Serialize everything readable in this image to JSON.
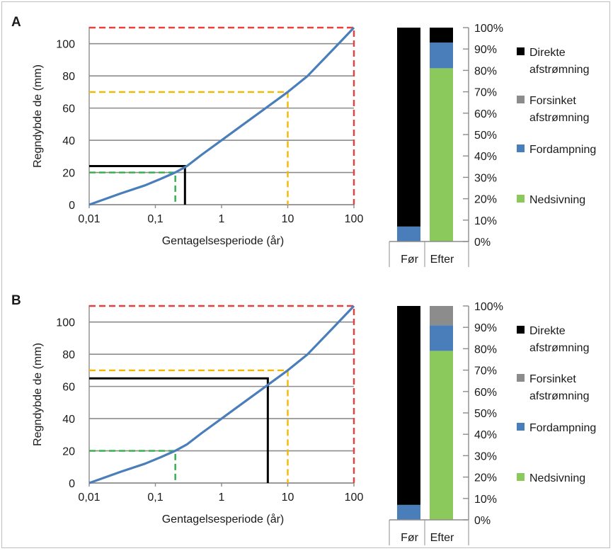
{
  "colors": {
    "curve": "#4a7ebb",
    "grid": "#8c8c8c",
    "axis": "#8c8c8c",
    "red": "#e8413c",
    "orange": "#f5b800",
    "green": "#2eae4a",
    "black": "#000000",
    "direkte": "#000000",
    "forsinket": "#8c8c8c",
    "fordampning": "#4a7ebb",
    "nedsivning": "#8cc95c"
  },
  "chart_data": [
    {
      "panel": "A",
      "type": "line",
      "xlabel": "Gentagelsesperiode (år)",
      "ylabel": "Regndybde de (mm)",
      "x_scale": "log",
      "xlim": [
        0.01,
        100
      ],
      "ylim": [
        0,
        110
      ],
      "x_tick_labels": [
        "0,01",
        "0,1",
        "1",
        "10",
        "100"
      ],
      "y_tick_labels": [
        "0",
        "20",
        "40",
        "60",
        "80",
        "100"
      ],
      "grid": "horizontal",
      "series": [
        {
          "x": [
            0.01,
            0.03,
            0.07,
            0.12,
            0.2,
            0.3,
            0.5,
            1,
            2,
            5,
            10,
            20,
            50,
            100
          ],
          "y": [
            0,
            7,
            12,
            16,
            20,
            24,
            31,
            40,
            49,
            61,
            70,
            80,
            97,
            110
          ]
        }
      ],
      "reference_lines": [
        {
          "color": "red",
          "style": "dashed",
          "x": 100,
          "y": 110
        },
        {
          "color": "orange",
          "style": "dashed",
          "x": 10,
          "y": 70
        },
        {
          "color": "green",
          "style": "dashed",
          "x": 0.2,
          "y": 20
        },
        {
          "color": "black",
          "style": "solid",
          "x": 0.28,
          "y": 24
        }
      ]
    },
    {
      "panel": "B",
      "type": "line",
      "xlabel": "Gentagelsesperiode (år)",
      "ylabel": "Regndybde de (mm)",
      "x_scale": "log",
      "xlim": [
        0.01,
        100
      ],
      "ylim": [
        0,
        110
      ],
      "x_tick_labels": [
        "0,01",
        "0,1",
        "1",
        "10",
        "100"
      ],
      "y_tick_labels": [
        "0",
        "20",
        "40",
        "60",
        "80",
        "100"
      ],
      "grid": "horizontal",
      "series": [
        {
          "x": [
            0.01,
            0.03,
            0.07,
            0.12,
            0.2,
            0.3,
            0.5,
            1,
            2,
            5,
            10,
            20,
            50,
            100
          ],
          "y": [
            0,
            7,
            12,
            16,
            20,
            24,
            31,
            40,
            49,
            61,
            70,
            80,
            97,
            110
          ]
        }
      ],
      "reference_lines": [
        {
          "color": "red",
          "style": "dashed",
          "x": 100,
          "y": 110
        },
        {
          "color": "orange",
          "style": "dashed",
          "x": 10,
          "y": 70
        },
        {
          "color": "green",
          "style": "dashed",
          "x": 0.2,
          "y": 20
        },
        {
          "color": "black",
          "style": "solid",
          "x": 5,
          "y": 65
        }
      ]
    },
    {
      "panel": "A",
      "type": "bar",
      "stacked": true,
      "categories": [
        "Før",
        "Efter"
      ],
      "y_tick_labels": [
        "0%",
        "10%",
        "20%",
        "30%",
        "40%",
        "50%",
        "60%",
        "70%",
        "80%",
        "90%",
        "100%"
      ],
      "y_axis_side": "right",
      "legend_position": "right",
      "series": [
        {
          "name": "Nedsivning",
          "color": "nedsivning",
          "values": [
            0,
            81
          ]
        },
        {
          "name": "Fordampning",
          "color": "fordampning",
          "values": [
            7,
            12
          ]
        },
        {
          "name": "Forsinket afstrømning",
          "color": "forsinket",
          "values": [
            0,
            0
          ]
        },
        {
          "name": "Direkte afstrømning",
          "color": "direkte",
          "values": [
            93,
            7
          ]
        }
      ],
      "legend": [
        {
          "line1": "Direkte",
          "line2": "afstrømning",
          "color": "direkte"
        },
        {
          "line1": "Forsinket",
          "line2": "afstrømning",
          "color": "forsinket"
        },
        {
          "line1": "Fordampning",
          "line2": "",
          "color": "fordampning"
        },
        {
          "line1": "Nedsivning",
          "line2": "",
          "color": "nedsivning"
        }
      ]
    },
    {
      "panel": "B",
      "type": "bar",
      "stacked": true,
      "categories": [
        "Før",
        "Efter"
      ],
      "y_tick_labels": [
        "0%",
        "10%",
        "20%",
        "30%",
        "40%",
        "50%",
        "60%",
        "70%",
        "80%",
        "90%",
        "100%"
      ],
      "y_axis_side": "right",
      "legend_position": "right",
      "series": [
        {
          "name": "Nedsivning",
          "color": "nedsivning",
          "values": [
            0,
            79
          ]
        },
        {
          "name": "Fordampning",
          "color": "fordampning",
          "values": [
            7,
            12
          ]
        },
        {
          "name": "Forsinket afstrømning",
          "color": "forsinket",
          "values": [
            0,
            9
          ]
        },
        {
          "name": "Direkte afstrømning",
          "color": "direkte",
          "values": [
            93,
            0
          ]
        }
      ],
      "legend": [
        {
          "line1": "Direkte",
          "line2": "afstrømning",
          "color": "direkte"
        },
        {
          "line1": "Forsinket",
          "line2": "afstrømning",
          "color": "forsinket"
        },
        {
          "line1": "Fordampning",
          "line2": "",
          "color": "fordampning"
        },
        {
          "line1": "Nedsivning",
          "line2": "",
          "color": "nedsivning"
        }
      ]
    }
  ]
}
